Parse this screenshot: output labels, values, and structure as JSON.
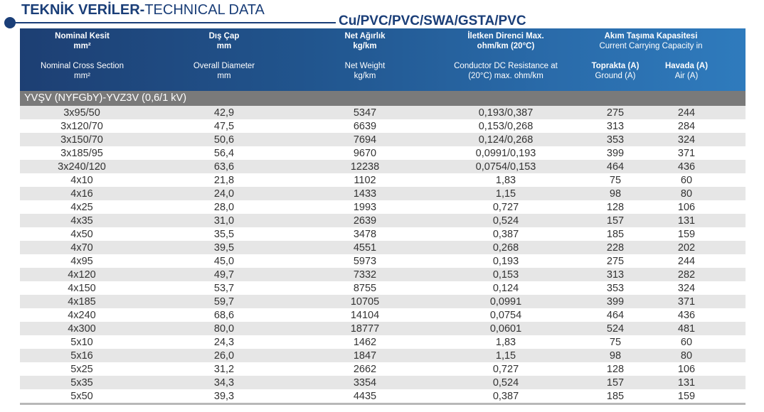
{
  "title": {
    "bold": "TEKNİK VERİLER-",
    "regular": "TECHNICAL DATA"
  },
  "subtitle": "Cu/PVC/PVC/SWA/GSTA/PVC",
  "header": {
    "c1": {
      "tr": "Nominal Kesit",
      "tr_unit": "mm²",
      "en": "Nominal Cross Section",
      "en_unit": "mm²"
    },
    "c2": {
      "tr": "Dış Çap",
      "tr_unit": "mm",
      "en": "Overall Diameter",
      "en_unit": "mm"
    },
    "c3": {
      "tr": "Net Ağırlık",
      "tr_unit": "kg/km",
      "en": "Net Weight",
      "en_unit": "kg/km"
    },
    "c4": {
      "tr": "İletken Direnci Max.",
      "tr_unit": "ohm/km (20°C)",
      "en": "Conductor DC Resistance at",
      "en_unit": "(20°C) max. ohm/km"
    },
    "group": {
      "tr": "Akım Taşıma Kapasitesi",
      "en": "Current Carrying Capacity in"
    },
    "c5": {
      "tr": "Toprakta (A)",
      "en": "Ground (A)"
    },
    "c6": {
      "tr": "Havada (A)",
      "en": "Air (A)"
    }
  },
  "section": "YVŞV (NYFGbY)-YVZ3V (0,6/1 kV)",
  "rows": [
    [
      "3x95/50",
      "42,9",
      "5347",
      "0,193/0,387",
      "275",
      "244"
    ],
    [
      "3x120/70",
      "47,5",
      "6639",
      "0,153/0,268",
      "313",
      "284"
    ],
    [
      "3x150/70",
      "50,6",
      "7694",
      "0,124/0,268",
      "353",
      "324"
    ],
    [
      "3x185/95",
      "56,4",
      "9670",
      "0,0991/0,193",
      "399",
      "371"
    ],
    [
      "3x240/120",
      "63,6",
      "12238",
      "0,0754/0,153",
      "464",
      "436"
    ],
    [
      "4x10",
      "21,8",
      "1102",
      "1,83",
      "75",
      "60"
    ],
    [
      "4x16",
      "24,0",
      "1433",
      "1,15",
      "98",
      "80"
    ],
    [
      "4x25",
      "28,0",
      "1993",
      "0,727",
      "128",
      "106"
    ],
    [
      "4x35",
      "31,0",
      "2639",
      "0,524",
      "157",
      "131"
    ],
    [
      "4x50",
      "35,5",
      "3478",
      "0,387",
      "185",
      "159"
    ],
    [
      "4x70",
      "39,5",
      "4551",
      "0,268",
      "228",
      "202"
    ],
    [
      "4x95",
      "45,0",
      "5973",
      "0,193",
      "275",
      "244"
    ],
    [
      "4x120",
      "49,7",
      "7332",
      "0,153",
      "313",
      "282"
    ],
    [
      "4x150",
      "53,7",
      "8755",
      "0,124",
      "353",
      "324"
    ],
    [
      "4x185",
      "59,7",
      "10705",
      "0,0991",
      "399",
      "371"
    ],
    [
      "4x240",
      "68,6",
      "14104",
      "0,0754",
      "464",
      "436"
    ],
    [
      "4x300",
      "80,0",
      "18777",
      "0,0601",
      "524",
      "481"
    ],
    [
      "5x10",
      "24,3",
      "1462",
      "1,83",
      "75",
      "60"
    ],
    [
      "5x16",
      "26,0",
      "1847",
      "1,15",
      "98",
      "80"
    ],
    [
      "5x25",
      "31,2",
      "2662",
      "0,727",
      "128",
      "106"
    ],
    [
      "5x35",
      "34,3",
      "3354",
      "0,524",
      "157",
      "131"
    ],
    [
      "5x50",
      "39,3",
      "4435",
      "0,387",
      "185",
      "159"
    ]
  ],
  "colors": {
    "brand_blue": "#1a3e78",
    "header_start": "#1d3f73",
    "header_end": "#2f7bbd",
    "section_gray": "#7a7a7a",
    "row_alt": "#e6e6e6"
  }
}
